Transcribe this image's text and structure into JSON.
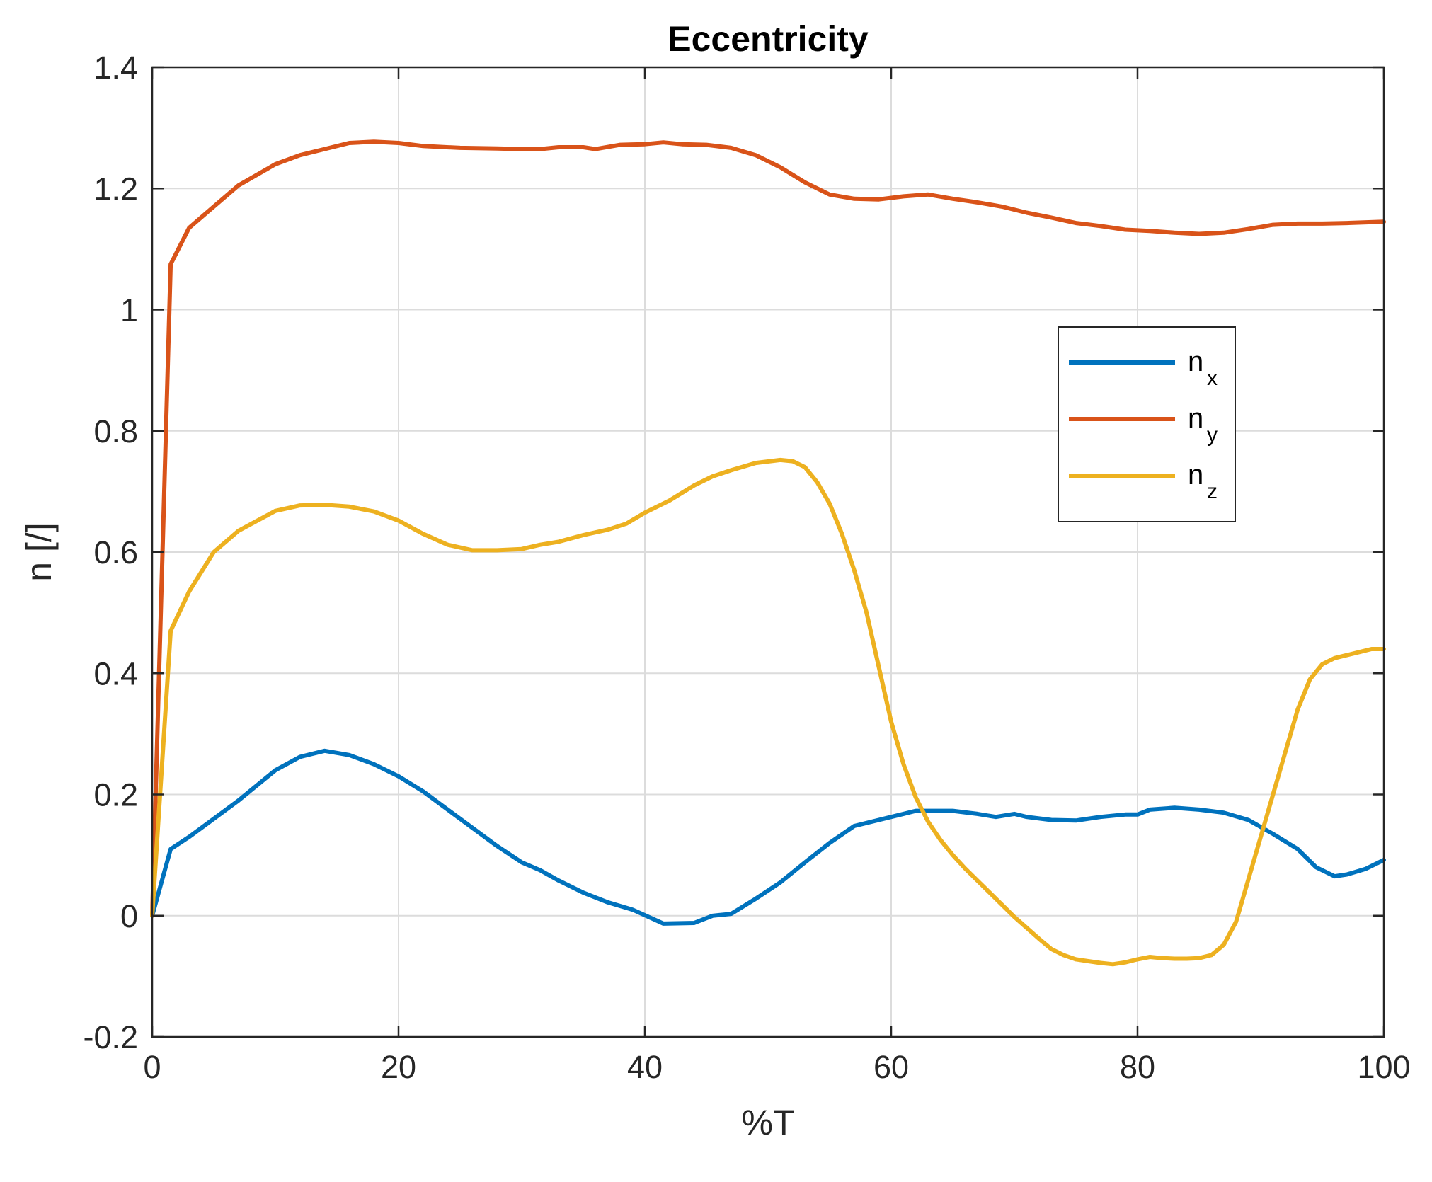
{
  "chart_data": {
    "type": "line",
    "title": "Eccentricity",
    "xlabel": "%T",
    "ylabel": "n [/]",
    "xlim": [
      0,
      100
    ],
    "ylim": [
      -0.2,
      1.4
    ],
    "xticks": [
      0,
      20,
      40,
      60,
      80,
      100
    ],
    "yticks": [
      -0.2,
      0,
      0.2,
      0.4,
      0.6,
      0.8,
      1,
      1.2,
      1.4
    ],
    "xtick_labels": [
      "0",
      "20",
      "40",
      "60",
      "80",
      "100"
    ],
    "ytick_labels": [
      "-0.2",
      "0",
      "0.2",
      "0.4",
      "0.6",
      "0.8",
      "1",
      "1.2",
      "1.4"
    ],
    "grid": true,
    "legend_position": "right-center",
    "series": [
      {
        "name": "n_x",
        "legend_main": "n",
        "legend_sub": "x",
        "color": "#0072BD",
        "x": [
          0,
          1.5,
          3,
          5,
          7,
          10,
          12,
          14,
          16,
          18,
          20,
          22,
          25,
          28,
          30,
          31.5,
          33,
          35,
          37,
          39,
          41.5,
          44,
          45.5,
          47,
          49,
          51,
          53,
          55,
          57,
          60,
          62,
          65,
          67,
          68.5,
          70,
          71,
          73,
          75,
          77,
          79,
          80,
          81,
          83,
          85,
          87,
          89,
          91,
          93,
          94.5,
          96,
          97,
          98.5,
          100
        ],
        "y": [
          0,
          0.11,
          0.13,
          0.16,
          0.19,
          0.24,
          0.262,
          0.272,
          0.265,
          0.25,
          0.23,
          0.205,
          0.16,
          0.115,
          0.088,
          0.075,
          0.058,
          0.038,
          0.022,
          0.01,
          -0.013,
          -0.012,
          0.0,
          0.003,
          0.028,
          0.055,
          0.088,
          0.12,
          0.148,
          0.163,
          0.173,
          0.173,
          0.168,
          0.163,
          0.168,
          0.163,
          0.158,
          0.157,
          0.163,
          0.167,
          0.167,
          0.175,
          0.178,
          0.175,
          0.17,
          0.158,
          0.135,
          0.11,
          0.08,
          0.065,
          0.068,
          0.077,
          0.092
        ]
      },
      {
        "name": "n_y",
        "legend_main": "n",
        "legend_sub": "y",
        "color": "#D95319",
        "x": [
          0,
          1.5,
          3,
          5,
          7,
          10,
          12,
          14,
          16,
          18,
          20,
          22,
          25,
          28,
          30,
          31.5,
          33,
          35,
          36,
          38,
          40,
          41.5,
          43,
          45,
          47,
          49,
          51,
          53,
          55,
          57,
          59,
          61,
          63,
          65,
          67,
          69,
          71,
          73,
          75,
          77,
          79,
          81,
          83,
          85,
          87,
          89,
          91,
          93,
          95,
          97,
          100
        ],
        "y": [
          0,
          1.075,
          1.135,
          1.17,
          1.205,
          1.24,
          1.255,
          1.265,
          1.275,
          1.277,
          1.275,
          1.27,
          1.267,
          1.266,
          1.265,
          1.265,
          1.268,
          1.268,
          1.265,
          1.272,
          1.273,
          1.276,
          1.273,
          1.272,
          1.267,
          1.255,
          1.235,
          1.21,
          1.19,
          1.183,
          1.182,
          1.187,
          1.19,
          1.183,
          1.177,
          1.17,
          1.16,
          1.152,
          1.143,
          1.138,
          1.132,
          1.13,
          1.127,
          1.125,
          1.127,
          1.133,
          1.14,
          1.142,
          1.142,
          1.143,
          1.145
        ]
      },
      {
        "name": "n_z",
        "legend_main": "n",
        "legend_sub": "z",
        "color": "#EDB120",
        "x": [
          0,
          1.5,
          3,
          5,
          7,
          10,
          12,
          14,
          16,
          18,
          20,
          22,
          24,
          26,
          28,
          30,
          31.5,
          33,
          35,
          37,
          38.5,
          40,
          42,
          44,
          45.5,
          47,
          49,
          51,
          52,
          53,
          54,
          55,
          56,
          57,
          58,
          59,
          60,
          61,
          62,
          63,
          64,
          65,
          66,
          67,
          68,
          69,
          70,
          71,
          72,
          73,
          74,
          75,
          76,
          77,
          78,
          79,
          80,
          81,
          82,
          83,
          84,
          85,
          86,
          87,
          88,
          89,
          90,
          91,
          92,
          93,
          94,
          95,
          96,
          97,
          98,
          99,
          100
        ],
        "y": [
          0,
          0.47,
          0.535,
          0.6,
          0.635,
          0.668,
          0.677,
          0.678,
          0.675,
          0.667,
          0.652,
          0.63,
          0.612,
          0.603,
          0.603,
          0.605,
          0.612,
          0.617,
          0.628,
          0.637,
          0.647,
          0.665,
          0.685,
          0.71,
          0.725,
          0.735,
          0.747,
          0.752,
          0.75,
          0.74,
          0.715,
          0.68,
          0.63,
          0.57,
          0.5,
          0.41,
          0.32,
          0.25,
          0.195,
          0.155,
          0.125,
          0.1,
          0.078,
          0.058,
          0.038,
          0.018,
          -0.002,
          -0.02,
          -0.038,
          -0.055,
          -0.065,
          -0.072,
          -0.075,
          -0.078,
          -0.08,
          -0.077,
          -0.072,
          -0.068,
          -0.07,
          -0.071,
          -0.071,
          -0.07,
          -0.065,
          -0.048,
          -0.01,
          0.06,
          0.13,
          0.2,
          0.27,
          0.34,
          0.39,
          0.415,
          0.425,
          0.43,
          0.435,
          0.44,
          0.44
        ]
      }
    ]
  }
}
